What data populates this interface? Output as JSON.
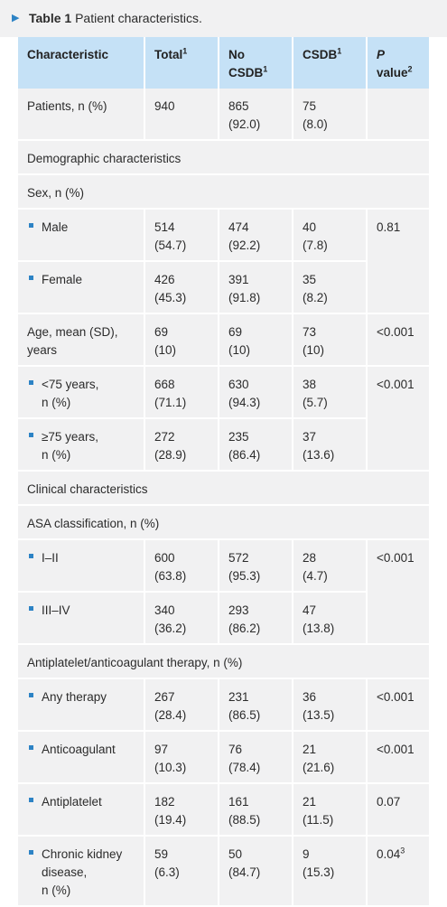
{
  "caption": {
    "label": "Table 1",
    "text": "Patient characteristics."
  },
  "headers": [
    {
      "text": "Characteristic",
      "sup": ""
    },
    {
      "text": "Total",
      "sup": "1"
    },
    {
      "line1": "No",
      "line2": "CSDB",
      "sup": "1"
    },
    {
      "text": "CSDB",
      "sup": "1"
    },
    {
      "line1": "P",
      "line2": "value",
      "sup": "2"
    }
  ],
  "rows": {
    "patients": {
      "label": "Patients, n (%)",
      "total": [
        "940",
        ""
      ],
      "no": [
        "865",
        "(92.0)"
      ],
      "csdb": [
        "75",
        "(8.0)"
      ],
      "p": ""
    },
    "demo": "Demographic characteristics",
    "sex": "Sex, n (%)",
    "male": {
      "label": "Male",
      "total": [
        "514",
        "(54.7)"
      ],
      "no": [
        "474",
        "(92.2)"
      ],
      "csdb": [
        "40",
        "(7.8)"
      ],
      "p": "0.81"
    },
    "female": {
      "label": "Female",
      "total": [
        "426",
        "(45.3)"
      ],
      "no": [
        "391",
        "(91.8)"
      ],
      "csdb": [
        "35",
        "(8.2)"
      ]
    },
    "age": {
      "label1": "Age, mean (SD),",
      "label2": "years",
      "total": [
        "69",
        "(10)"
      ],
      "no": [
        "69",
        "(10)"
      ],
      "csdb": [
        "73",
        "(10)"
      ],
      "p": "<0.001"
    },
    "lt75": {
      "label1": "<75 years,",
      "label2": "n (%)",
      "total": [
        "668",
        "(71.1)"
      ],
      "no": [
        "630",
        "(94.3)"
      ],
      "csdb": [
        "38",
        "(5.7)"
      ],
      "p": "<0.001"
    },
    "ge75": {
      "label1": "≥75 years,",
      "label2": "n (%)",
      "total": [
        "272",
        "(28.9)"
      ],
      "no": [
        "235",
        "(86.4)"
      ],
      "csdb": [
        "37",
        "(13.6)"
      ]
    },
    "clin": "Clinical characteristics",
    "asa": "ASA classification, n (%)",
    "asa12": {
      "label": "I–II",
      "total": [
        "600",
        "(63.8)"
      ],
      "no": [
        "572",
        "(95.3)"
      ],
      "csdb": [
        "28",
        "(4.7)"
      ],
      "p": "<0.001"
    },
    "asa34": {
      "label": "III–IV",
      "total": [
        "340",
        "(36.2)"
      ],
      "no": [
        "293",
        "(86.2)"
      ],
      "csdb": [
        "47",
        "(13.8)"
      ]
    },
    "anti": "Antiplatelet/anticoagulant therapy, n (%)",
    "any": {
      "label": "Any therapy",
      "total": [
        "267",
        "(28.4)"
      ],
      "no": [
        "231",
        "(86.5)"
      ],
      "csdb": [
        "36",
        "(13.5)"
      ],
      "p": "<0.001"
    },
    "coag": {
      "label": "Anticoagulant",
      "total": [
        "97",
        "(10.3)"
      ],
      "no": [
        "76",
        "(78.4)"
      ],
      "csdb": [
        "21",
        "(21.6)"
      ],
      "p": "<0.001"
    },
    "plat": {
      "label": "Antiplatelet",
      "total": [
        "182",
        "(19.4)"
      ],
      "no": [
        "161",
        "(88.5)"
      ],
      "csdb": [
        "21",
        "(11.5)"
      ],
      "p": "0.07"
    },
    "ckd": {
      "label1": "Chronic kidney",
      "label2": "disease,",
      "label3": "n (%)",
      "total": [
        "59",
        "(6.3)"
      ],
      "no": [
        "50",
        "(84.7)"
      ],
      "csdb": [
        "9",
        "(15.3)"
      ],
      "p": "0.04",
      "p_sup": "3"
    }
  }
}
